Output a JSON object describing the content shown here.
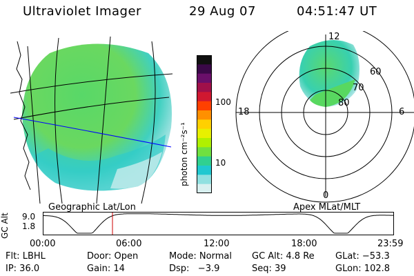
{
  "header": {
    "title": "Ultraviolet Imager",
    "date": "29 Aug 07",
    "time": "04:51:47 UT"
  },
  "panels": {
    "left_caption": "Geographic Lat/Lon",
    "right_caption": "Apex MLat/MLT"
  },
  "colorbar": {
    "label": "photon cm⁻²s⁻¹",
    "ticks": [
      "100",
      "10"
    ],
    "colors": [
      "#101010",
      "#3a0848",
      "#6a0f6a",
      "#a0104a",
      "#d01830",
      "#ff4000",
      "#ff9000",
      "#ffd000",
      "#e8f000",
      "#b0f000",
      "#70e040",
      "#30d090",
      "#20c8d0",
      "#90e0e0",
      "#d8f0f0"
    ]
  },
  "polar": {
    "mlt_labels": [
      "12",
      "18",
      "6",
      "0"
    ],
    "lat_labels": [
      "60",
      "70",
      "80"
    ]
  },
  "altitude": {
    "y_axis_label": "GC Alt",
    "y_ticks": [
      "9.0",
      "1.8"
    ],
    "x_ticks": [
      "00:00",
      "06:00",
      "12:00",
      "18:00",
      "23:59"
    ],
    "curve_color": "#000000",
    "marker_color": "#cc0000"
  },
  "status": {
    "filter": "Flt: LBHL",
    "door": "Door: Open",
    "mode": "Mode: Normal",
    "gc_alt": "GC Alt: 4.8 Re",
    "glat": "GLat: −53.3",
    "ip": "IP: 36.0",
    "gain": "Gain: 14",
    "dsp": "Dsp:   −3.9",
    "seq": "Seq: 39",
    "glon": "GLon: 102.8"
  }
}
